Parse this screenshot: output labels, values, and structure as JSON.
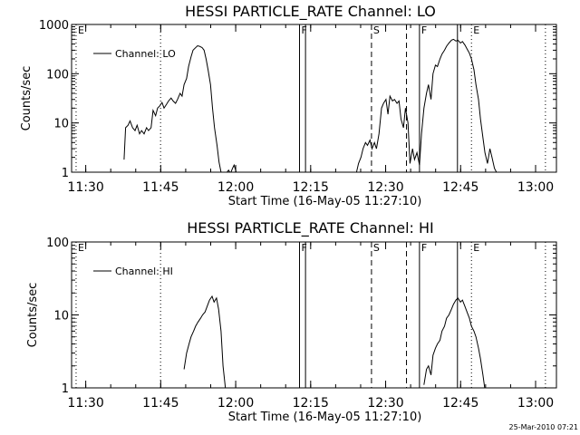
{
  "footer_timestamp": "25-Mar-2010 07:21",
  "chart_data": [
    {
      "type": "line",
      "title": "HESSI PARTICLE_RATE Channel: LO",
      "xlabel": "Start Time (16-May-05 11:27:10)",
      "ylabel": "Counts/sec",
      "y_scale": "log",
      "ylim": [
        1,
        1000
      ],
      "y_ticks": [
        1,
        10,
        100,
        1000
      ],
      "y_tick_labels": [
        "1",
        "10",
        "100",
        "1000"
      ],
      "x_unit": "minutes after 11:27:10",
      "xlim": [
        0,
        97
      ],
      "x_tick_minutes": [
        2.83,
        17.83,
        32.83,
        47.83,
        62.83,
        77.83,
        92.83
      ],
      "x_tick_labels": [
        "11:30",
        "11:45",
        "12:00",
        "12:15",
        "12:30",
        "12:45",
        "13:00"
      ],
      "legend": {
        "entries": [
          "Channel: LO"
        ],
        "placement": "top-left"
      },
      "markers": [
        {
          "label": "E",
          "x": 0.9,
          "style": "dotted"
        },
        {
          "label": "",
          "x": 17.8,
          "style": "dotted"
        },
        {
          "label": "F",
          "x": 45.6,
          "style": "solid"
        },
        {
          "label": "",
          "x": 46.8,
          "style": "solid"
        },
        {
          "label": "S",
          "x": 60.0,
          "style": "dashed"
        },
        {
          "label": "",
          "x": 67.0,
          "style": "dashed"
        },
        {
          "label": "F",
          "x": 69.6,
          "style": "solid"
        },
        {
          "label": "",
          "x": 77.2,
          "style": "solid"
        },
        {
          "label": "E",
          "x": 80.0,
          "style": "dotted"
        },
        {
          "label": "",
          "x": 94.8,
          "style": "dotted"
        }
      ],
      "series": [
        {
          "name": "Channel: LO",
          "segments": [
            {
              "x": [
                10.5,
                10.8,
                11.3,
                11.7,
                12.2,
                12.7,
                13.1,
                13.6,
                14.0,
                14.5,
                15.0,
                15.4,
                15.9,
                16.3,
                16.8,
                17.2,
                17.6,
                18.1,
                18.5,
                19.0,
                19.4,
                19.9,
                20.3,
                20.8,
                21.2,
                21.7,
                22.1,
                22.5,
                23.0,
                23.4,
                23.9,
                24.3,
                24.7,
                25.2,
                25.6,
                26.1,
                26.5,
                26.9,
                27.3,
                27.8,
                28.2,
                28.6,
                29.1,
                29.5,
                29.9,
                30.3,
                30.7,
                31.1,
                31.4,
                31.8,
                32.2,
                32.5,
                33.0
              ],
              "y": [
                1.8,
                8,
                9,
                11,
                8,
                7,
                9,
                6,
                7,
                6,
                8,
                7,
                8,
                18,
                14,
                20,
                22,
                26,
                20,
                24,
                28,
                32,
                28,
                25,
                30,
                40,
                35,
                60,
                80,
                140,
                220,
                300,
                330,
                370,
                360,
                340,
                300,
                200,
                120,
                60,
                20,
                8,
                3.5,
                1.6,
                1,
                1,
                1,
                1,
                1.1,
                0.95,
                1.2,
                1.4,
                0.95
              ]
            },
            {
              "x": [
                57.0,
                57.4,
                57.9,
                58.3,
                58.8,
                59.2,
                59.7,
                60.1,
                60.6,
                61.0,
                61.5,
                62.0,
                62.4,
                62.9,
                63.3,
                63.7,
                64.2,
                64.6,
                65.1,
                65.5,
                65.9,
                66.4,
                66.8,
                67.3,
                67.7,
                68.2,
                68.6,
                69.1,
                69.6,
                70.0,
                70.5,
                71.0,
                71.4,
                71.9,
                72.3,
                72.8,
                73.2,
                73.7,
                74.1,
                74.6,
                75.0,
                75.5,
                76.0,
                76.4,
                76.9,
                77.3,
                77.8,
                78.2,
                78.7,
                79.1,
                79.6,
                80.0,
                80.5,
                80.9,
                81.4,
                81.8,
                82.3,
                82.7,
                83.2,
                83.7,
                84.1,
                84.6,
                85.0,
                85.4
              ],
              "y": [
                1,
                1.5,
                2,
                3,
                4,
                3.5,
                4.5,
                3,
                4,
                3,
                6,
                20,
                25,
                30,
                15,
                35,
                28,
                30,
                25,
                28,
                12,
                8,
                20,
                10,
                1.5,
                3,
                1.8,
                2.5,
                1.4,
                6,
                20,
                40,
                60,
                30,
                100,
                150,
                140,
                200,
                250,
                300,
                360,
                420,
                480,
                500,
                460,
                480,
                420,
                450,
                380,
                320,
                260,
                200,
                120,
                60,
                30,
                12,
                5,
                2.5,
                1.5,
                3,
                2,
                1.2,
                1,
                0.95
              ]
            }
          ]
        }
      ]
    },
    {
      "type": "line",
      "title": "HESSI PARTICLE_RATE Channel: HI",
      "xlabel": "Start Time (16-May-05 11:27:10)",
      "ylabel": "Counts/sec",
      "y_scale": "log",
      "ylim": [
        1,
        100
      ],
      "y_ticks": [
        1,
        10,
        100
      ],
      "y_tick_labels": [
        "1",
        "10",
        "100"
      ],
      "x_unit": "minutes after 11:27:10",
      "xlim": [
        0,
        97
      ],
      "x_tick_minutes": [
        2.83,
        17.83,
        32.83,
        47.83,
        62.83,
        77.83,
        92.83
      ],
      "x_tick_labels": [
        "11:30",
        "11:45",
        "12:00",
        "12:15",
        "12:30",
        "12:45",
        "13:00"
      ],
      "legend": {
        "entries": [
          "Channel: HI"
        ],
        "placement": "top-left"
      },
      "markers": [
        {
          "label": "E",
          "x": 0.9,
          "style": "dotted"
        },
        {
          "label": "",
          "x": 17.8,
          "style": "dotted"
        },
        {
          "label": "F",
          "x": 45.6,
          "style": "solid"
        },
        {
          "label": "",
          "x": 46.8,
          "style": "solid"
        },
        {
          "label": "S",
          "x": 60.0,
          "style": "dashed"
        },
        {
          "label": "",
          "x": 67.0,
          "style": "dashed"
        },
        {
          "label": "F",
          "x": 69.6,
          "style": "solid"
        },
        {
          "label": "",
          "x": 77.2,
          "style": "solid"
        },
        {
          "label": "E",
          "x": 80.0,
          "style": "dotted"
        },
        {
          "label": "",
          "x": 94.8,
          "style": "dotted"
        }
      ],
      "series": [
        {
          "name": "Channel: HI",
          "segments": [
            {
              "x": [
                22.5,
                23.0,
                23.5,
                23.9,
                24.4,
                24.8,
                25.3,
                25.8,
                26.2,
                26.7,
                27.1,
                27.6,
                28.1,
                28.5,
                29.0,
                29.4,
                29.9,
                30.3,
                30.8
              ],
              "y": [
                1.8,
                3,
                4,
                5,
                6,
                7,
                8,
                9,
                10,
                11,
                13,
                16,
                18,
                15,
                17,
                12,
                6,
                2,
                0.95
              ]
            },
            {
              "x": [
                70.5,
                71.0,
                71.4,
                71.9,
                72.3,
                72.8,
                73.2,
                73.7,
                74.1,
                74.6,
                75.0,
                75.5,
                76.0,
                76.4,
                76.9,
                77.3,
                77.8,
                78.2,
                78.7,
                79.1,
                79.6,
                80.0,
                80.5,
                80.9,
                81.4,
                81.8,
                82.3,
                82.7
              ],
              "y": [
                1.1,
                1.8,
                2,
                1.5,
                2.8,
                3.5,
                4,
                4.5,
                6,
                7,
                9,
                10,
                12,
                14,
                16,
                17,
                15,
                16,
                13,
                11,
                9,
                7,
                6,
                5,
                3.5,
                2.5,
                1.5,
                0.95
              ]
            }
          ]
        }
      ]
    }
  ]
}
